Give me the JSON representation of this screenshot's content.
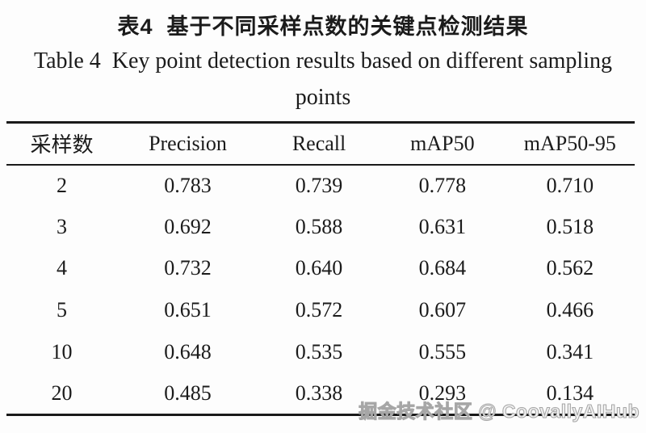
{
  "caption": {
    "title_cn": "表4  基于不同采样点数的关键点检测结果",
    "title_en_line1": "Table 4  Key point detection results based on different sampling",
    "title_en_line2": "points"
  },
  "table": {
    "columns": [
      "采样数",
      "Precision",
      "Recall",
      "mAP50",
      "mAP50-95"
    ],
    "rows": [
      [
        "2",
        "0.783",
        "0.739",
        "0.778",
        "0.710"
      ],
      [
        "3",
        "0.692",
        "0.588",
        "0.631",
        "0.518"
      ],
      [
        "4",
        "0.732",
        "0.640",
        "0.684",
        "0.562"
      ],
      [
        "5",
        "0.651",
        "0.572",
        "0.607",
        "0.466"
      ],
      [
        "10",
        "0.648",
        "0.535",
        "0.555",
        "0.341"
      ],
      [
        "20",
        "0.485",
        "0.338",
        "0.293",
        "0.134"
      ]
    ]
  },
  "watermark": "掘金技术社区 @ CoovallyAIHub",
  "colors": {
    "text": "#1b1b1b",
    "rule": "#1a1a1a",
    "background": "#fdfdfd",
    "watermark_fill": "#fafafa",
    "watermark_stroke": "#a6a6a6"
  }
}
